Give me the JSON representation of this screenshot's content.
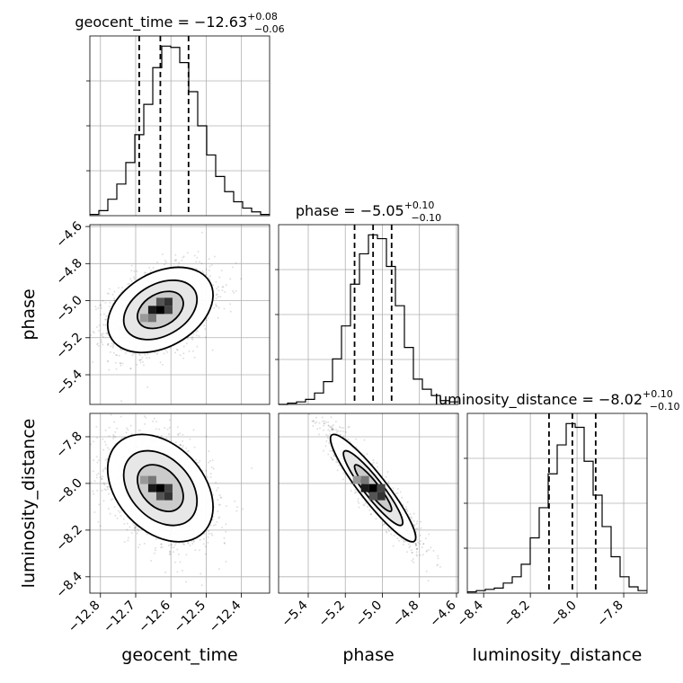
{
  "chart_data": {
    "type": "corner",
    "parameters": [
      "geocent_time",
      "phase",
      "luminosity_distance"
    ],
    "axis_labels": {
      "x": [
        "geocent_time",
        "phase",
        "luminosity_distance"
      ],
      "y": [
        "phase",
        "luminosity_distance"
      ]
    },
    "titles": [
      {
        "param": "geocent_time",
        "prefix": "geocent_time = ",
        "value": "−12.63",
        "plus": "+0.08",
        "minus": "−0.06"
      },
      {
        "param": "phase",
        "prefix": "phase = ",
        "value": "−5.05",
        "plus": "+0.10",
        "minus": "−0.10"
      },
      {
        "param": "luminosity_distance",
        "prefix": "luminosity_distance = ",
        "value": "−8.02",
        "plus": "+0.10",
        "minus": "−0.10"
      }
    ],
    "ranges": {
      "geocent_time": [
        -12.83,
        -12.32
      ],
      "phase": [
        -5.56,
        -4.59
      ],
      "luminosity_distance": [
        -8.47,
        -7.7
      ]
    },
    "ticks": {
      "geocent_time": {
        "values": [
          -12.8,
          -12.7,
          -12.6,
          -12.5,
          -12.4
        ],
        "labels": [
          "−12.8",
          "−12.7",
          "−12.6",
          "−12.5",
          "−12.4"
        ]
      },
      "phase": {
        "values": [
          -5.4,
          -5.2,
          -5.0,
          -4.8,
          -4.6
        ],
        "labels": [
          "−5.4",
          "−5.2",
          "−5.0",
          "−4.8",
          "−4.6"
        ]
      },
      "luminosity_distance": {
        "values": [
          -8.4,
          -8.2,
          -8.0,
          -7.8
        ],
        "labels": [
          "−8.4",
          "−8.2",
          "−8.0",
          "−7.8"
        ]
      }
    },
    "quantiles": {
      "geocent_time": [
        -12.69,
        -12.63,
        -12.55
      ],
      "phase": [
        -5.15,
        -5.05,
        -4.95
      ],
      "luminosity_distance": [
        -8.12,
        -8.02,
        -7.92
      ]
    },
    "histograms": {
      "geocent_time": [
        1,
        4,
        13,
        25,
        42,
        64,
        88,
        117,
        134,
        133,
        121,
        98,
        71,
        48,
        31,
        19,
        11,
        6,
        3,
        1
      ],
      "phase": [
        0,
        1,
        2,
        4,
        9,
        18,
        36,
        62,
        95,
        119,
        134,
        131,
        109,
        78,
        45,
        20,
        12,
        7,
        3,
        2
      ],
      "luminosity_distance": [
        1,
        2,
        3,
        4,
        8,
        13,
        23,
        44,
        68,
        95,
        118,
        135,
        132,
        105,
        78,
        53,
        29,
        13,
        5,
        2
      ]
    },
    "posterior_2d": [
      {
        "x": "geocent_time",
        "y": "phase",
        "mean": [
          -12.63,
          -5.05
        ],
        "sd": [
          0.065,
          0.1
        ],
        "rho": 0.35
      },
      {
        "x": "geocent_time",
        "y": "luminosity_distance",
        "mean": [
          -12.63,
          -8.02
        ],
        "sd": [
          0.065,
          0.1
        ],
        "rho": -0.35
      },
      {
        "x": "phase",
        "y": "luminosity_distance",
        "mean": [
          -5.05,
          -8.02
        ],
        "sd": [
          0.1,
          0.1
        ],
        "rho": -0.92
      }
    ],
    "grid": true
  }
}
